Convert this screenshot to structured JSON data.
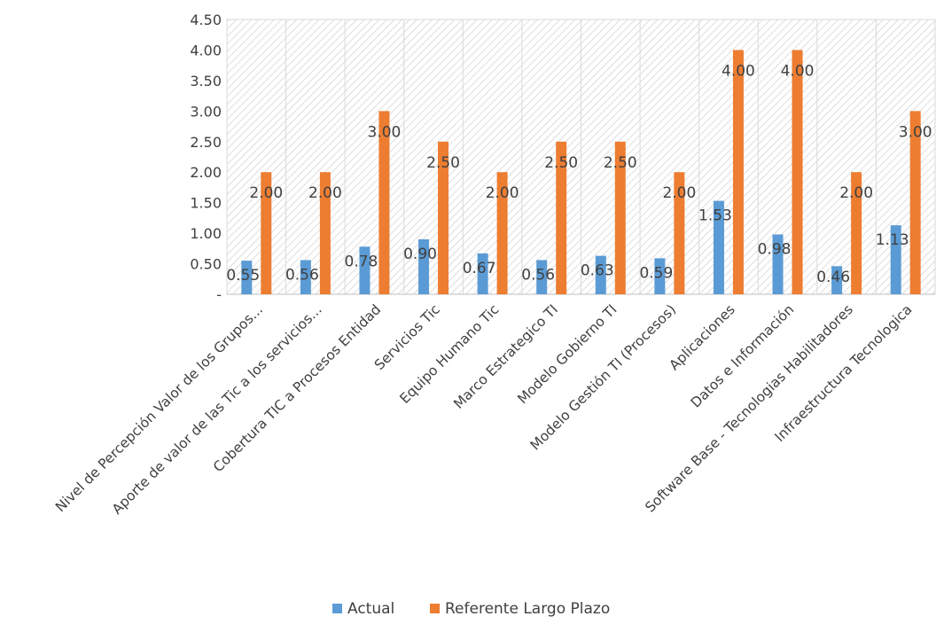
{
  "chart_data": {
    "type": "bar",
    "title": "",
    "xlabel": "",
    "ylabel": "",
    "ylim": [
      0,
      4.5
    ],
    "yticks": [
      0,
      0.5,
      1.0,
      1.5,
      2.0,
      2.5,
      3.0,
      3.5,
      4.0,
      4.5
    ],
    "ytick_labels": [
      "-",
      "0.50",
      "1.00",
      "1.50",
      "2.00",
      "2.50",
      "3.00",
      "3.50",
      "4.00",
      "4.50"
    ],
    "grid": false,
    "plot_background": "diagonal hatch pattern",
    "legend_position": "bottom",
    "categories": [
      "Nivel de Percepción Valor de los Grupos...",
      "Aporte de valor de las Tic a los servicios...",
      "Cobertura TIC a Procesos Entidad",
      "Servicios Tic",
      "Equipo Humano Tic",
      "Marco Estrategico TI",
      "Modelo Gobierno TI",
      "Modelo Gestión TI (Procesos)",
      "Aplicaciones",
      "Datos e Información",
      "Software Base - Tecnologias Habilitadores",
      "Infraestructura Tecnologica"
    ],
    "series": [
      {
        "name": "Actual",
        "color": "#5b9bd5",
        "values": [
          0.55,
          0.56,
          0.78,
          0.9,
          0.67,
          0.56,
          0.63,
          0.59,
          1.53,
          0.98,
          0.46,
          1.13
        ],
        "labels": [
          "0.55",
          "0.56",
          "0.78",
          "0.90",
          "0.67",
          "0.56",
          "0.63",
          "0.59",
          "1.53",
          "0.98",
          "0.46",
          "1.13"
        ]
      },
      {
        "name": "Referente Largo Plazo",
        "color": "#ed7d31",
        "values": [
          2.0,
          2.0,
          3.0,
          2.5,
          2.0,
          2.5,
          2.5,
          2.0,
          4.0,
          4.0,
          2.0,
          3.0
        ],
        "labels": [
          "2.00",
          "2.00",
          "3.00",
          "2.50",
          "2.00",
          "2.50",
          "2.50",
          "2.00",
          "4.00",
          "4.00",
          "2.00",
          "3.00"
        ]
      }
    ]
  }
}
